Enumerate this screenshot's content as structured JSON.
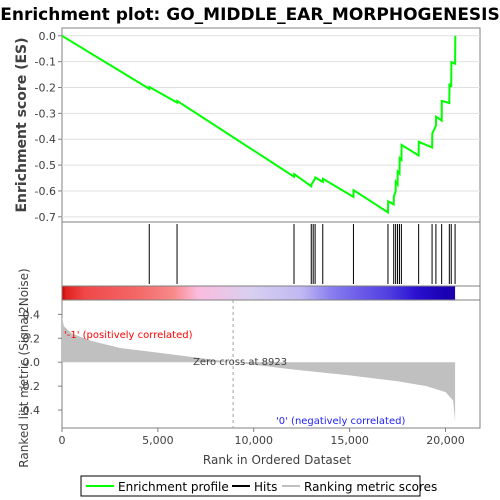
{
  "chart_data": {
    "type": "line",
    "title": "Enrichment plot: GO_MIDDLE_EAR_MORPHOGENESIS",
    "es_panel": {
      "ylabel": "Enrichment score (ES)",
      "ylim": [
        -0.72,
        0.03
      ],
      "yticks": [
        "0.0",
        "-0.1",
        "-0.2",
        "-0.3",
        "-0.4",
        "-0.5",
        "-0.6",
        "-0.7"
      ],
      "grid": true,
      "series": [
        {
          "name": "Enrichment profile",
          "color": "#00ff00",
          "x": [
            0,
            4550,
            4560,
            6000,
            6010,
            12100,
            12110,
            13000,
            13010,
            13200,
            13210,
            13600,
            13610,
            15200,
            15210,
            17000,
            17010,
            17300,
            17310,
            17400,
            17410,
            17500,
            17510,
            17600,
            17610,
            17700,
            17710,
            18600,
            18610,
            19300,
            19310,
            19500,
            19510,
            19800,
            19810,
            20200,
            20210,
            20300,
            20310,
            20500,
            20510
          ],
          "y": [
            0.0,
            -0.205,
            -0.198,
            -0.258,
            -0.252,
            -0.545,
            -0.535,
            -0.582,
            -0.575,
            -0.552,
            -0.548,
            -0.565,
            -0.553,
            -0.623,
            -0.597,
            -0.683,
            -0.64,
            -0.652,
            -0.62,
            -0.603,
            -0.565,
            -0.575,
            -0.525,
            -0.533,
            -0.473,
            -0.48,
            -0.422,
            -0.463,
            -0.41,
            -0.432,
            -0.378,
            -0.348,
            -0.313,
            -0.328,
            -0.252,
            -0.26,
            -0.185,
            -0.198,
            -0.102,
            -0.108,
            0.0
          ]
        }
      ]
    },
    "hits": {
      "name": "Hits",
      "positions": [
        4550,
        6000,
        12100,
        13000,
        13100,
        13200,
        13600,
        15200,
        17000,
        17300,
        17400,
        17500,
        17600,
        17700,
        18600,
        19300,
        19500,
        19800,
        20200,
        20300,
        20500
      ]
    },
    "heatmap_gradient": [
      {
        "x": 0,
        "color": "#cc0000"
      },
      {
        "x": 200,
        "color": "#e02020"
      },
      {
        "x": 1200,
        "color": "#f04848"
      },
      {
        "x": 4100,
        "color": "#f46a6a"
      },
      {
        "x": 5800,
        "color": "#f88a8a"
      },
      {
        "x": 7100,
        "color": "#fbbcde"
      },
      {
        "x": 9900,
        "color": "#d8d0f0"
      },
      {
        "x": 12500,
        "color": "#c0b8f2"
      },
      {
        "x": 14000,
        "color": "#8a80ef"
      },
      {
        "x": 15600,
        "color": "#6a5ae8"
      },
      {
        "x": 17000,
        "color": "#5040e0"
      },
      {
        "x": 18500,
        "color": "#2a10d0"
      },
      {
        "x": 20000,
        "color": "#1a00b0"
      },
      {
        "x": 20500,
        "color": "#1a00b0"
      }
    ],
    "metric_panel": {
      "ylabel": "Ranked list metric (Signal2Noise)",
      "xlabel": "Rank in Ordered Dataset",
      "ylim": [
        -0.55,
        0.52
      ],
      "yticks": [
        "0.4",
        "0.2",
        "0.0",
        "-0.2",
        "-0.4"
      ],
      "xlim": [
        0,
        21800
      ],
      "xticks": [
        "0",
        "5,000",
        "10,000",
        "15,000",
        "20,000"
      ],
      "zero_cross": 8923,
      "zero_cross_label": "Zero cross at 8923",
      "positive_label": "'-1' (positively correlated)",
      "negative_label": "'0' (negatively correlated)",
      "curve_x": [
        0,
        100,
        500,
        1500,
        3000,
        5000,
        8923,
        12000,
        15000,
        17500,
        19000,
        20000,
        20400,
        20500
      ],
      "curve_y": [
        0.38,
        0.3,
        0.24,
        0.18,
        0.12,
        0.08,
        0.0,
        -0.06,
        -0.11,
        -0.16,
        -0.2,
        -0.25,
        -0.32,
        -0.5
      ]
    },
    "legend": {
      "items": [
        {
          "label": "Enrichment profile",
          "color": "#00ff00"
        },
        {
          "label": "Hits",
          "color": "#000000"
        },
        {
          "label": "Ranking metric scores",
          "color": "#c0c0c0"
        }
      ],
      "placement": "bottom"
    }
  }
}
